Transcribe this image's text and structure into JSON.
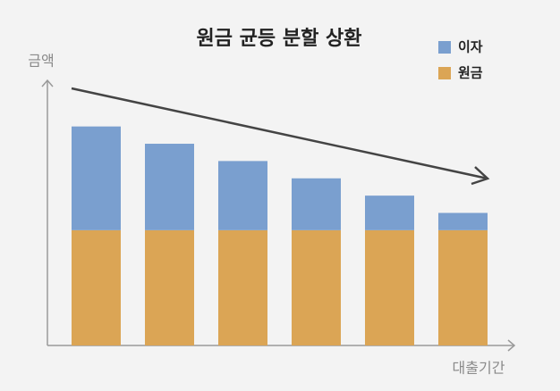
{
  "chart_data": {
    "type": "stacked-bar",
    "title": "원금 균등 분할 상환",
    "x_label": "대출기간",
    "y_label": "금액",
    "categories": [
      null,
      null,
      null,
      null,
      null,
      null
    ],
    "series": [
      {
        "name": "원금",
        "color": "#dba555",
        "values": [
          100,
          100,
          100,
          100,
          100,
          100
        ]
      },
      {
        "name": "이자",
        "color": "#7a9fcf",
        "values": [
          90,
          75,
          60,
          45,
          30,
          15
        ]
      }
    ],
    "ylim": [
      0,
      230
    ]
  }
}
